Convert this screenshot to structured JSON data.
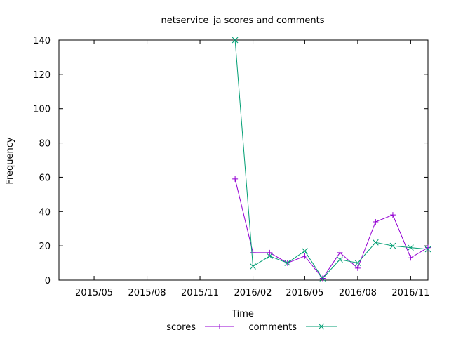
{
  "chart_data": {
    "type": "line",
    "title": "netservice_ja scores and comments",
    "xlabel": "Time",
    "ylabel": "Frequency",
    "xlim": [
      "2015-03-01",
      "2016-12-01"
    ],
    "ylim": [
      0,
      140
    ],
    "x_ticks": [
      {
        "date": "2015-05-01",
        "label": "2015/05"
      },
      {
        "date": "2015-08-01",
        "label": "2015/08"
      },
      {
        "date": "2015-11-01",
        "label": "2015/11"
      },
      {
        "date": "2016-02-01",
        "label": "2016/02"
      },
      {
        "date": "2016-05-01",
        "label": "2016/05"
      },
      {
        "date": "2016-08-01",
        "label": "2016/08"
      },
      {
        "date": "2016-11-01",
        "label": "2016/11"
      }
    ],
    "y_ticks": [
      0,
      20,
      40,
      60,
      80,
      100,
      120,
      140
    ],
    "grid": false,
    "legend_position": "bottom",
    "series": [
      {
        "name": "scores",
        "color": "#9400d3",
        "marker": "plus",
        "x": [
          "2016-01-01",
          "2016-02-01",
          "2016-03-01",
          "2016-04-01",
          "2016-05-01",
          "2016-06-01",
          "2016-07-01",
          "2016-08-01",
          "2016-09-01",
          "2016-10-01",
          "2016-11-01",
          "2016-12-01"
        ],
        "y": [
          59,
          16,
          16,
          10,
          14,
          1,
          16,
          7,
          34,
          38,
          13,
          19
        ]
      },
      {
        "name": "comments",
        "color": "#009e73",
        "marker": "cross",
        "x": [
          "2016-01-01",
          "2016-02-01",
          "2016-03-01",
          "2016-04-01",
          "2016-05-01",
          "2016-06-01",
          "2016-07-01",
          "2016-08-01",
          "2016-09-01",
          "2016-10-01",
          "2016-11-01",
          "2016-12-01"
        ],
        "y": [
          140,
          8,
          14,
          10,
          17,
          1,
          12,
          10,
          22,
          20,
          19,
          18
        ]
      }
    ]
  }
}
